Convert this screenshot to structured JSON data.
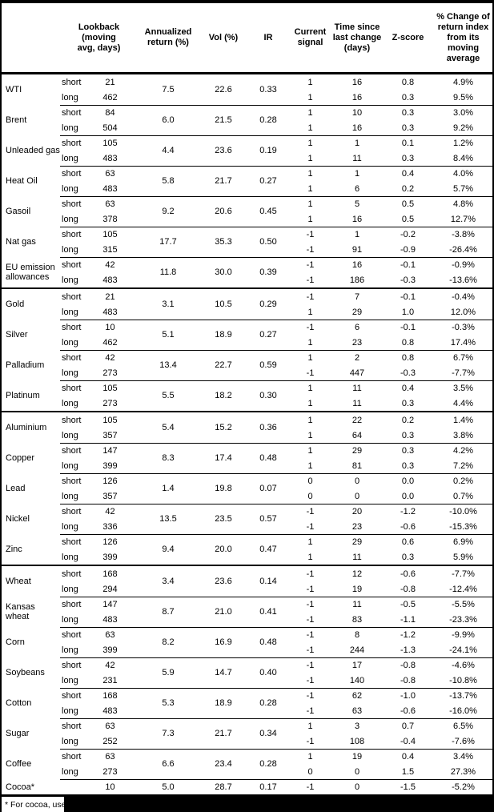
{
  "table": {
    "headers": {
      "lookback": "Lookback\n(moving\navg, days)",
      "annualized_return": "Annualized\nreturn (%)",
      "vol": "Vol (%)",
      "ir": "IR",
      "current_signal": "Current\nsignal",
      "time_since": "Time since\nlast change\n(days)",
      "zscore": "Z-score",
      "pct_change": "% Change of\nreturn index\nfrom its\nmoving\naverage"
    },
    "commodities": [
      {
        "name": "WTI",
        "section_break": false,
        "annualized_return": "7.5",
        "vol": "22.6",
        "ir": "0.33",
        "rows": [
          {
            "side": "short",
            "lookback": "21",
            "signal": "1",
            "time_since": "16",
            "zscore": "0.8",
            "pct_change": "4.9%"
          },
          {
            "side": "long",
            "lookback": "462",
            "signal": "1",
            "time_since": "16",
            "zscore": "0.3",
            "pct_change": "9.5%"
          }
        ]
      },
      {
        "name": "Brent",
        "section_break": false,
        "annualized_return": "6.0",
        "vol": "21.5",
        "ir": "0.28",
        "rows": [
          {
            "side": "short",
            "lookback": "84",
            "signal": "1",
            "time_since": "10",
            "zscore": "0.3",
            "pct_change": "3.0%"
          },
          {
            "side": "long",
            "lookback": "504",
            "signal": "1",
            "time_since": "16",
            "zscore": "0.3",
            "pct_change": "9.2%"
          }
        ]
      },
      {
        "name": "Unleaded gas",
        "section_break": false,
        "annualized_return": "4.4",
        "vol": "23.6",
        "ir": "0.19",
        "rows": [
          {
            "side": "short",
            "lookback": "105",
            "signal": "1",
            "time_since": "1",
            "zscore": "0.1",
            "pct_change": "1.2%"
          },
          {
            "side": "long",
            "lookback": "483",
            "signal": "1",
            "time_since": "11",
            "zscore": "0.3",
            "pct_change": "8.4%"
          }
        ]
      },
      {
        "name": "Heat Oil",
        "section_break": false,
        "annualized_return": "5.8",
        "vol": "21.7",
        "ir": "0.27",
        "rows": [
          {
            "side": "short",
            "lookback": "63",
            "signal": "1",
            "time_since": "1",
            "zscore": "0.4",
            "pct_change": "4.0%"
          },
          {
            "side": "long",
            "lookback": "483",
            "signal": "1",
            "time_since": "6",
            "zscore": "0.2",
            "pct_change": "5.7%"
          }
        ]
      },
      {
        "name": "Gasoil",
        "section_break": false,
        "annualized_return": "9.2",
        "vol": "20.6",
        "ir": "0.45",
        "rows": [
          {
            "side": "short",
            "lookback": "63",
            "signal": "1",
            "time_since": "5",
            "zscore": "0.5",
            "pct_change": "4.8%"
          },
          {
            "side": "long",
            "lookback": "378",
            "signal": "1",
            "time_since": "16",
            "zscore": "0.5",
            "pct_change": "12.7%"
          }
        ]
      },
      {
        "name": "Nat gas",
        "section_break": false,
        "annualized_return": "17.7",
        "vol": "35.3",
        "ir": "0.50",
        "rows": [
          {
            "side": "short",
            "lookback": "105",
            "signal": "-1",
            "time_since": "1",
            "zscore": "-0.2",
            "pct_change": "-3.8%"
          },
          {
            "side": "long",
            "lookback": "315",
            "signal": "-1",
            "time_since": "91",
            "zscore": "-0.9",
            "pct_change": "-26.4%"
          }
        ]
      },
      {
        "name": "EU emission allowances",
        "section_break": false,
        "annualized_return": "11.8",
        "vol": "30.0",
        "ir": "0.39",
        "rows": [
          {
            "side": "short",
            "lookback": "42",
            "signal": "-1",
            "time_since": "16",
            "zscore": "-0.1",
            "pct_change": "-0.9%"
          },
          {
            "side": "long",
            "lookback": "483",
            "signal": "-1",
            "time_since": "186",
            "zscore": "-0.3",
            "pct_change": "-13.6%"
          }
        ]
      },
      {
        "name": "Gold",
        "section_break": true,
        "annualized_return": "3.1",
        "vol": "10.5",
        "ir": "0.29",
        "rows": [
          {
            "side": "short",
            "lookback": "21",
            "signal": "-1",
            "time_since": "7",
            "zscore": "-0.1",
            "pct_change": "-0.4%"
          },
          {
            "side": "long",
            "lookback": "483",
            "signal": "1",
            "time_since": "29",
            "zscore": "1.0",
            "pct_change": "12.0%"
          }
        ]
      },
      {
        "name": "Silver",
        "section_break": false,
        "annualized_return": "5.1",
        "vol": "18.9",
        "ir": "0.27",
        "rows": [
          {
            "side": "short",
            "lookback": "10",
            "signal": "-1",
            "time_since": "6",
            "zscore": "-0.1",
            "pct_change": "-0.3%"
          },
          {
            "side": "long",
            "lookback": "462",
            "signal": "1",
            "time_since": "23",
            "zscore": "0.8",
            "pct_change": "17.4%"
          }
        ]
      },
      {
        "name": "Palladium",
        "section_break": false,
        "annualized_return": "13.4",
        "vol": "22.7",
        "ir": "0.59",
        "rows": [
          {
            "side": "short",
            "lookback": "42",
            "signal": "1",
            "time_since": "2",
            "zscore": "0.8",
            "pct_change": "6.7%"
          },
          {
            "side": "long",
            "lookback": "273",
            "signal": "-1",
            "time_since": "447",
            "zscore": "-0.3",
            "pct_change": "-7.7%"
          }
        ]
      },
      {
        "name": "Platinum",
        "section_break": false,
        "annualized_return": "5.5",
        "vol": "18.2",
        "ir": "0.30",
        "rows": [
          {
            "side": "short",
            "lookback": "105",
            "signal": "1",
            "time_since": "11",
            "zscore": "0.4",
            "pct_change": "3.5%"
          },
          {
            "side": "long",
            "lookback": "273",
            "signal": "1",
            "time_since": "11",
            "zscore": "0.3",
            "pct_change": "4.4%"
          }
        ]
      },
      {
        "name": "Aluminium",
        "section_break": true,
        "annualized_return": "5.4",
        "vol": "15.2",
        "ir": "0.36",
        "rows": [
          {
            "side": "short",
            "lookback": "105",
            "signal": "1",
            "time_since": "22",
            "zscore": "0.2",
            "pct_change": "1.4%"
          },
          {
            "side": "long",
            "lookback": "357",
            "signal": "1",
            "time_since": "64",
            "zscore": "0.3",
            "pct_change": "3.8%"
          }
        ]
      },
      {
        "name": "Copper",
        "section_break": false,
        "annualized_return": "8.3",
        "vol": "17.4",
        "ir": "0.48",
        "rows": [
          {
            "side": "short",
            "lookback": "147",
            "signal": "1",
            "time_since": "29",
            "zscore": "0.3",
            "pct_change": "4.2%"
          },
          {
            "side": "long",
            "lookback": "399",
            "signal": "1",
            "time_since": "81",
            "zscore": "0.3",
            "pct_change": "7.2%"
          }
        ]
      },
      {
        "name": "Lead",
        "section_break": false,
        "annualized_return": "1.4",
        "vol": "19.8",
        "ir": "0.07",
        "rows": [
          {
            "side": "short",
            "lookback": "126",
            "signal": "0",
            "time_since": "0",
            "zscore": "0.0",
            "pct_change": "0.2%"
          },
          {
            "side": "long",
            "lookback": "357",
            "signal": "0",
            "time_since": "0",
            "zscore": "0.0",
            "pct_change": "0.7%"
          }
        ]
      },
      {
        "name": "Nickel",
        "section_break": false,
        "annualized_return": "13.5",
        "vol": "23.5",
        "ir": "0.57",
        "rows": [
          {
            "side": "short",
            "lookback": "42",
            "signal": "-1",
            "time_since": "20",
            "zscore": "-1.2",
            "pct_change": "-10.0%"
          },
          {
            "side": "long",
            "lookback": "336",
            "signal": "-1",
            "time_since": "23",
            "zscore": "-0.6",
            "pct_change": "-15.3%"
          }
        ]
      },
      {
        "name": "Zinc",
        "section_break": false,
        "annualized_return": "9.4",
        "vol": "20.0",
        "ir": "0.47",
        "rows": [
          {
            "side": "short",
            "lookback": "126",
            "signal": "1",
            "time_since": "29",
            "zscore": "0.6",
            "pct_change": "6.9%"
          },
          {
            "side": "long",
            "lookback": "399",
            "signal": "1",
            "time_since": "11",
            "zscore": "0.3",
            "pct_change": "5.9%"
          }
        ]
      },
      {
        "name": "Wheat",
        "section_break": true,
        "annualized_return": "3.4",
        "vol": "23.6",
        "ir": "0.14",
        "rows": [
          {
            "side": "short",
            "lookback": "168",
            "signal": "-1",
            "time_since": "12",
            "zscore": "-0.6",
            "pct_change": "-7.7%"
          },
          {
            "side": "long",
            "lookback": "294",
            "signal": "-1",
            "time_since": "19",
            "zscore": "-0.8",
            "pct_change": "-12.4%"
          }
        ]
      },
      {
        "name": "Kansas wheat",
        "section_break": false,
        "annualized_return": "8.7",
        "vol": "21.0",
        "ir": "0.41",
        "rows": [
          {
            "side": "short",
            "lookback": "147",
            "signal": "-1",
            "time_since": "11",
            "zscore": "-0.5",
            "pct_change": "-5.5%"
          },
          {
            "side": "long",
            "lookback": "483",
            "signal": "-1",
            "time_since": "83",
            "zscore": "-1.1",
            "pct_change": "-23.3%"
          }
        ]
      },
      {
        "name": "Corn",
        "section_break": false,
        "annualized_return": "8.2",
        "vol": "16.9",
        "ir": "0.48",
        "rows": [
          {
            "side": "short",
            "lookback": "63",
            "signal": "-1",
            "time_since": "8",
            "zscore": "-1.2",
            "pct_change": "-9.9%"
          },
          {
            "side": "long",
            "lookback": "399",
            "signal": "-1",
            "time_since": "244",
            "zscore": "-1.3",
            "pct_change": "-24.1%"
          }
        ]
      },
      {
        "name": "Soybeans",
        "section_break": false,
        "annualized_return": "5.9",
        "vol": "14.7",
        "ir": "0.40",
        "rows": [
          {
            "side": "short",
            "lookback": "42",
            "signal": "-1",
            "time_since": "17",
            "zscore": "-0.8",
            "pct_change": "-4.6%"
          },
          {
            "side": "long",
            "lookback": "231",
            "signal": "-1",
            "time_since": "140",
            "zscore": "-0.8",
            "pct_change": "-10.8%"
          }
        ]
      },
      {
        "name": "Cotton",
        "section_break": false,
        "annualized_return": "5.3",
        "vol": "18.9",
        "ir": "0.28",
        "rows": [
          {
            "side": "short",
            "lookback": "168",
            "signal": "-1",
            "time_since": "62",
            "zscore": "-1.0",
            "pct_change": "-13.7%"
          },
          {
            "side": "long",
            "lookback": "483",
            "signal": "-1",
            "time_since": "63",
            "zscore": "-0.6",
            "pct_change": "-16.0%"
          }
        ]
      },
      {
        "name": "Sugar",
        "section_break": false,
        "annualized_return": "7.3",
        "vol": "21.7",
        "ir": "0.34",
        "rows": [
          {
            "side": "short",
            "lookback": "63",
            "signal": "1",
            "time_since": "3",
            "zscore": "0.7",
            "pct_change": "6.5%"
          },
          {
            "side": "long",
            "lookback": "252",
            "signal": "-1",
            "time_since": "108",
            "zscore": "-0.4",
            "pct_change": "-7.6%"
          }
        ]
      },
      {
        "name": "Coffee",
        "section_break": false,
        "annualized_return": "6.6",
        "vol": "23.4",
        "ir": "0.28",
        "rows": [
          {
            "side": "short",
            "lookback": "63",
            "signal": "1",
            "time_since": "19",
            "zscore": "0.4",
            "pct_change": "3.4%"
          },
          {
            "side": "long",
            "lookback": "273",
            "signal": "0",
            "time_since": "0",
            "zscore": "1.5",
            "pct_change": "27.3%"
          }
        ]
      },
      {
        "name": "Cocoa*",
        "section_break": false,
        "annualized_return": "5.0",
        "vol": "28.7",
        "ir": "0.17",
        "rows": [
          {
            "side": "",
            "lookback": "10",
            "signal": "-1",
            "time_since": "0",
            "zscore": "-1.5",
            "pct_change": "-5.2%"
          }
        ]
      }
    ]
  },
  "footnote": {
    "text": "* For cocoa, uses c"
  }
}
